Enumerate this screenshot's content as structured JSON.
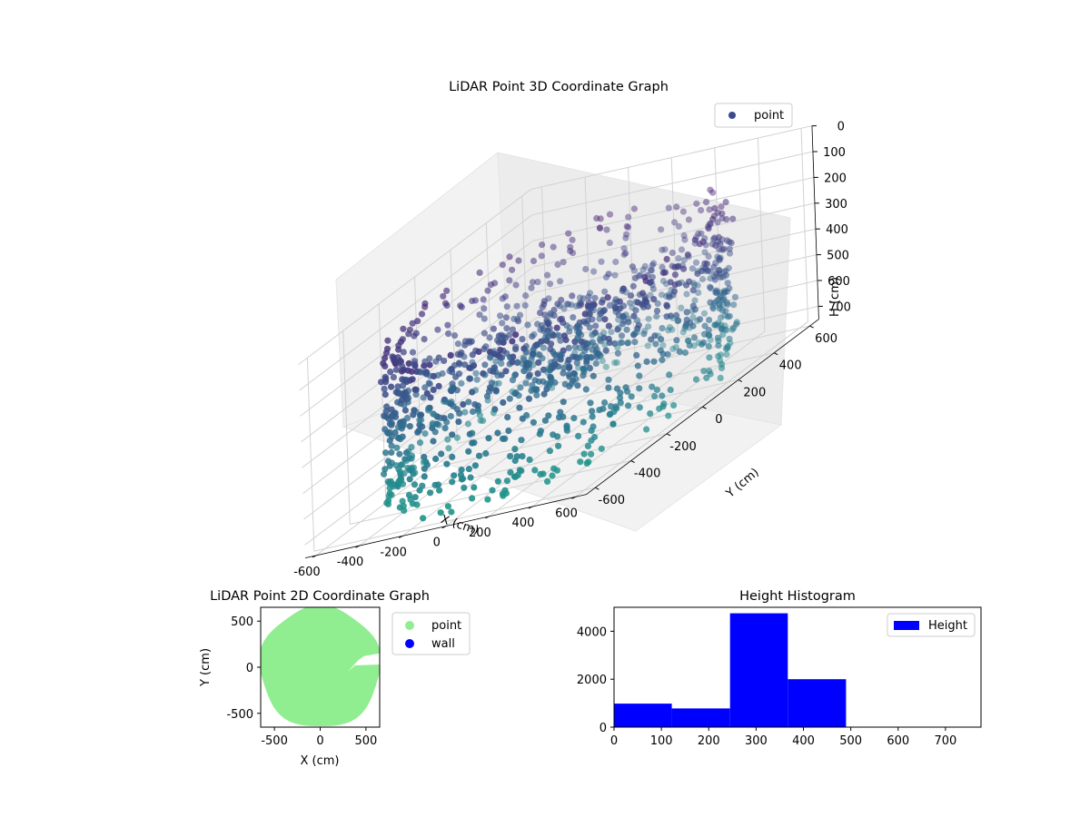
{
  "chart_data": [
    {
      "type": "scatter3d",
      "title": "LiDAR Point 3D Coordinate Graph",
      "xlabel": "X (cm)",
      "ylabel": "Y (cm)",
      "zlabel": "H (cm)",
      "xlim": [
        -650,
        650
      ],
      "ylim": [
        -650,
        650
      ],
      "zlim": [
        0,
        750
      ],
      "z_inverted": true,
      "xticks": [
        "-600",
        "-400",
        "-200",
        "0",
        "200",
        "400",
        "600"
      ],
      "yticks": [
        "-600",
        "-400",
        "-200",
        "0",
        "200",
        "400",
        "600"
      ],
      "zticks": [
        "0",
        "100",
        "200",
        "300",
        "400",
        "500",
        "600",
        "700"
      ],
      "legend": {
        "position": "top-right",
        "entries": [
          "point"
        ]
      },
      "colormap": "viridis",
      "series": [
        {
          "name": "point",
          "description": "roughly cylindrical ring of points, radius about 620 cm, heights 0-750 cm, with a wall gap near +X",
          "ring_radius": 620,
          "height_range": [
            0,
            750
          ],
          "approx_count": 9500
        }
      ]
    },
    {
      "type": "scatter",
      "title": "LiDAR Point 2D Coordinate Graph",
      "xlabel": "X (cm)",
      "ylabel": "Y (cm)",
      "xlim": [
        -650,
        650
      ],
      "ylim": [
        -650,
        650
      ],
      "xticks": [
        "-500",
        "0",
        "500"
      ],
      "yticks": [
        "-500",
        "0",
        "500"
      ],
      "legend": {
        "position": "outside-right",
        "entries": [
          "point",
          "wall"
        ]
      },
      "series": [
        {
          "name": "point",
          "color": "#90ee90",
          "description": "filled disk of radius about 650 cm with a notch near x=300..650, y=-50..150"
        },
        {
          "name": "wall",
          "color": "#0000ff",
          "values": []
        }
      ]
    },
    {
      "type": "bar",
      "title": "Height Histogram",
      "xlim": [
        0,
        775
      ],
      "ylim": [
        0,
        5000
      ],
      "xticks": [
        "0",
        "100",
        "200",
        "300",
        "400",
        "500",
        "600",
        "700"
      ],
      "yticks": [
        "0",
        "2000",
        "4000"
      ],
      "legend": {
        "position": "top-right",
        "entries": [
          "Height"
        ]
      },
      "series": [
        {
          "name": "Height",
          "color": "#0000ff",
          "bins": [
            {
              "x0": 0,
              "x1": 122,
              "count": 980
            },
            {
              "x0": 122,
              "x1": 245,
              "count": 780
            },
            {
              "x0": 245,
              "x1": 367,
              "count": 4750
            },
            {
              "x0": 367,
              "x1": 490,
              "count": 2000
            },
            {
              "x0": 490,
              "x1": 612,
              "count": 0
            },
            {
              "x0": 612,
              "x1": 735,
              "count": 0
            }
          ]
        }
      ]
    }
  ]
}
